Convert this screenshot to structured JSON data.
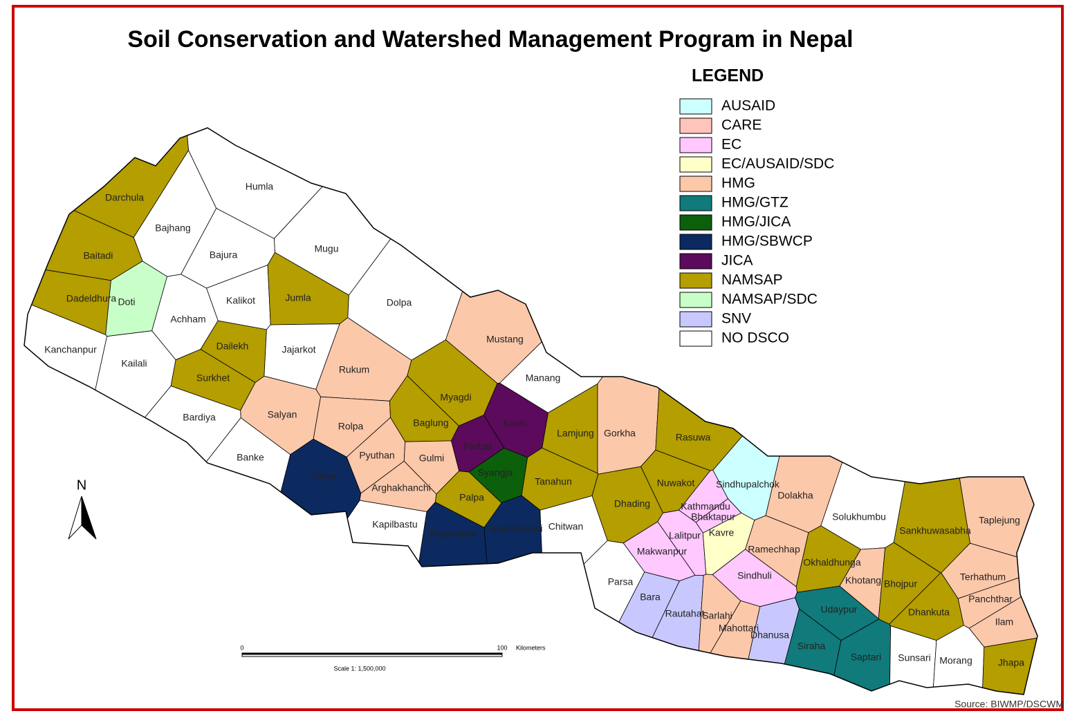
{
  "title": "Soil Conservation and Watershed Management Program in Nepal",
  "legend": {
    "title": "LEGEND",
    "items": [
      {
        "label": "AUSAID",
        "color": "#ccffff"
      },
      {
        "label": "CARE",
        "color": "#ffc4bc"
      },
      {
        "label": "EC",
        "color": "#ffc8ff"
      },
      {
        "label": "EC/AUSAID/SDC",
        "color": "#ffffc8"
      },
      {
        "label": "HMG",
        "color": "#fcc8aa"
      },
      {
        "label": "HMG/GTZ",
        "color": "#117a7a"
      },
      {
        "label": "HMG/JICA",
        "color": "#0c600c"
      },
      {
        "label": "HMG/SBWCP",
        "color": "#0c2a60"
      },
      {
        "label": "JICA",
        "color": "#5c0a5c"
      },
      {
        "label": "NAMSAP",
        "color": "#b49e00"
      },
      {
        "label": "NAMSAP/SDC",
        "color": "#c8ffc8"
      },
      {
        "label": "SNV",
        "color": "#c8c8ff"
      },
      {
        "label": "NO DSCO",
        "color": "#ffffff"
      }
    ]
  },
  "districts": [
    {
      "label": "Humla",
      "color": "#ffffff"
    },
    {
      "label": "Darchula",
      "color": "#b49e00"
    },
    {
      "label": "Bajhang",
      "color": "#ffffff"
    },
    {
      "label": "Mugu",
      "color": "#ffffff"
    },
    {
      "label": "Bajura",
      "color": "#ffffff"
    },
    {
      "label": "Baitadi",
      "color": "#b49e00"
    },
    {
      "label": "Dadeldhura",
      "color": "#b49e00"
    },
    {
      "label": "Doti",
      "color": "#c8ffc8"
    },
    {
      "label": "Kalikot",
      "color": "#ffffff"
    },
    {
      "label": "Jumla",
      "color": "#b49e00"
    },
    {
      "label": "Dolpa",
      "color": "#ffffff"
    },
    {
      "label": "Achham",
      "color": "#ffffff"
    },
    {
      "label": "Kanchanpur",
      "color": "#ffffff"
    },
    {
      "label": "Kailali",
      "color": "#ffffff"
    },
    {
      "label": "Dailekh",
      "color": "#b49e00"
    },
    {
      "label": "Jajarkot",
      "color": "#ffffff"
    },
    {
      "label": "Mustang",
      "color": "#fcc8aa"
    },
    {
      "label": "Rukum",
      "color": "#fcc8aa"
    },
    {
      "label": "Surkhet",
      "color": "#b49e00"
    },
    {
      "label": "Manang",
      "color": "#ffffff"
    },
    {
      "label": "Myagdi",
      "color": "#b49e00"
    },
    {
      "label": "Salyan",
      "color": "#fcc8aa"
    },
    {
      "label": "Bardiya",
      "color": "#ffffff"
    },
    {
      "label": "Rolpa",
      "color": "#fcc8aa"
    },
    {
      "label": "Baglung",
      "color": "#b49e00"
    },
    {
      "label": "Kaski",
      "color": "#5c0a5c"
    },
    {
      "label": "Lamjung",
      "color": "#b49e00"
    },
    {
      "label": "Gorkha",
      "color": "#fcc8aa"
    },
    {
      "label": "Rasuwa",
      "color": "#b49e00"
    },
    {
      "label": "Parbat",
      "color": "#5c0a5c"
    },
    {
      "label": "Banke",
      "color": "#ffffff"
    },
    {
      "label": "Pyuthan",
      "color": "#fcc8aa"
    },
    {
      "label": "Gulmi",
      "color": "#fcc8aa"
    },
    {
      "label": "Syangja",
      "color": "#0c600c"
    },
    {
      "label": "Dang",
      "color": "#0c2a60"
    },
    {
      "label": "Tanahun",
      "color": "#b49e00"
    },
    {
      "label": "Nuwakot",
      "color": "#b49e00"
    },
    {
      "label": "Sindhupalchok",
      "color": "#ccffff"
    },
    {
      "label": "Dolakha",
      "color": "#fcc8aa"
    },
    {
      "label": "Arghakhanchi",
      "color": "#fcc8aa"
    },
    {
      "label": "Palpa",
      "color": "#b49e00"
    },
    {
      "label": "Dhading",
      "color": "#b49e00"
    },
    {
      "label": "Kathmandu",
      "color": "#ffc8ff"
    },
    {
      "label": "Bhaktapur",
      "color": "#ffc8ff"
    },
    {
      "label": "Solukhumbu",
      "color": "#ffffff"
    },
    {
      "label": "Taplejung",
      "color": "#fcc8aa"
    },
    {
      "label": "Kapilbastu",
      "color": "#ffffff"
    },
    {
      "label": "Rupandehi",
      "color": "#0c2a60"
    },
    {
      "label": "Nawalparasi",
      "color": "#0c2a60"
    },
    {
      "label": "Chitwan",
      "color": "#ffffff"
    },
    {
      "label": "Sankhuwasabha",
      "color": "#b49e00"
    },
    {
      "label": "Lalitpur",
      "color": "#ffc8ff"
    },
    {
      "label": "Kavre",
      "color": "#ffffc8"
    },
    {
      "label": "Makwanpur",
      "color": "#ffc8ff"
    },
    {
      "label": "Ramechhap",
      "color": "#fcc8aa"
    },
    {
      "label": "Okhaldhunga",
      "color": "#b49e00"
    },
    {
      "label": "Khotang",
      "color": "#fcc8aa"
    },
    {
      "label": "Terhathum",
      "color": "#fcc8aa"
    },
    {
      "label": "Sindhuli",
      "color": "#ffc8ff"
    },
    {
      "label": "Bhojpur",
      "color": "#b49e00"
    },
    {
      "label": "Parsa",
      "color": "#ffffff"
    },
    {
      "label": "Panchthar",
      "color": "#fcc8aa"
    },
    {
      "label": "Bara",
      "color": "#c8c8ff"
    },
    {
      "label": "Udaypur",
      "color": "#117a7a"
    },
    {
      "label": "Dhankuta",
      "color": "#b49e00"
    },
    {
      "label": "Rautahat",
      "color": "#c8c8ff"
    },
    {
      "label": "Sarlahi",
      "color": "#fcc8aa"
    },
    {
      "label": "Ilam",
      "color": "#fcc8aa"
    },
    {
      "label": "Mahottari",
      "color": "#fcc8aa"
    },
    {
      "label": "Dhanusa",
      "color": "#c8c8ff"
    },
    {
      "label": "Siraha",
      "color": "#117a7a"
    },
    {
      "label": "Saptari",
      "color": "#117a7a"
    },
    {
      "label": "Sunsari",
      "color": "#ffffff"
    },
    {
      "label": "Morang",
      "color": "#ffffff"
    },
    {
      "label": "Jhapa",
      "color": "#b49e00"
    }
  ],
  "north": "N",
  "scale_bar": {
    "start": "0",
    "end": "100",
    "unit": "Kilometers",
    "scale": "Scale 1: 1,500,000"
  },
  "source": "Source: BIWMP/DSCWM"
}
